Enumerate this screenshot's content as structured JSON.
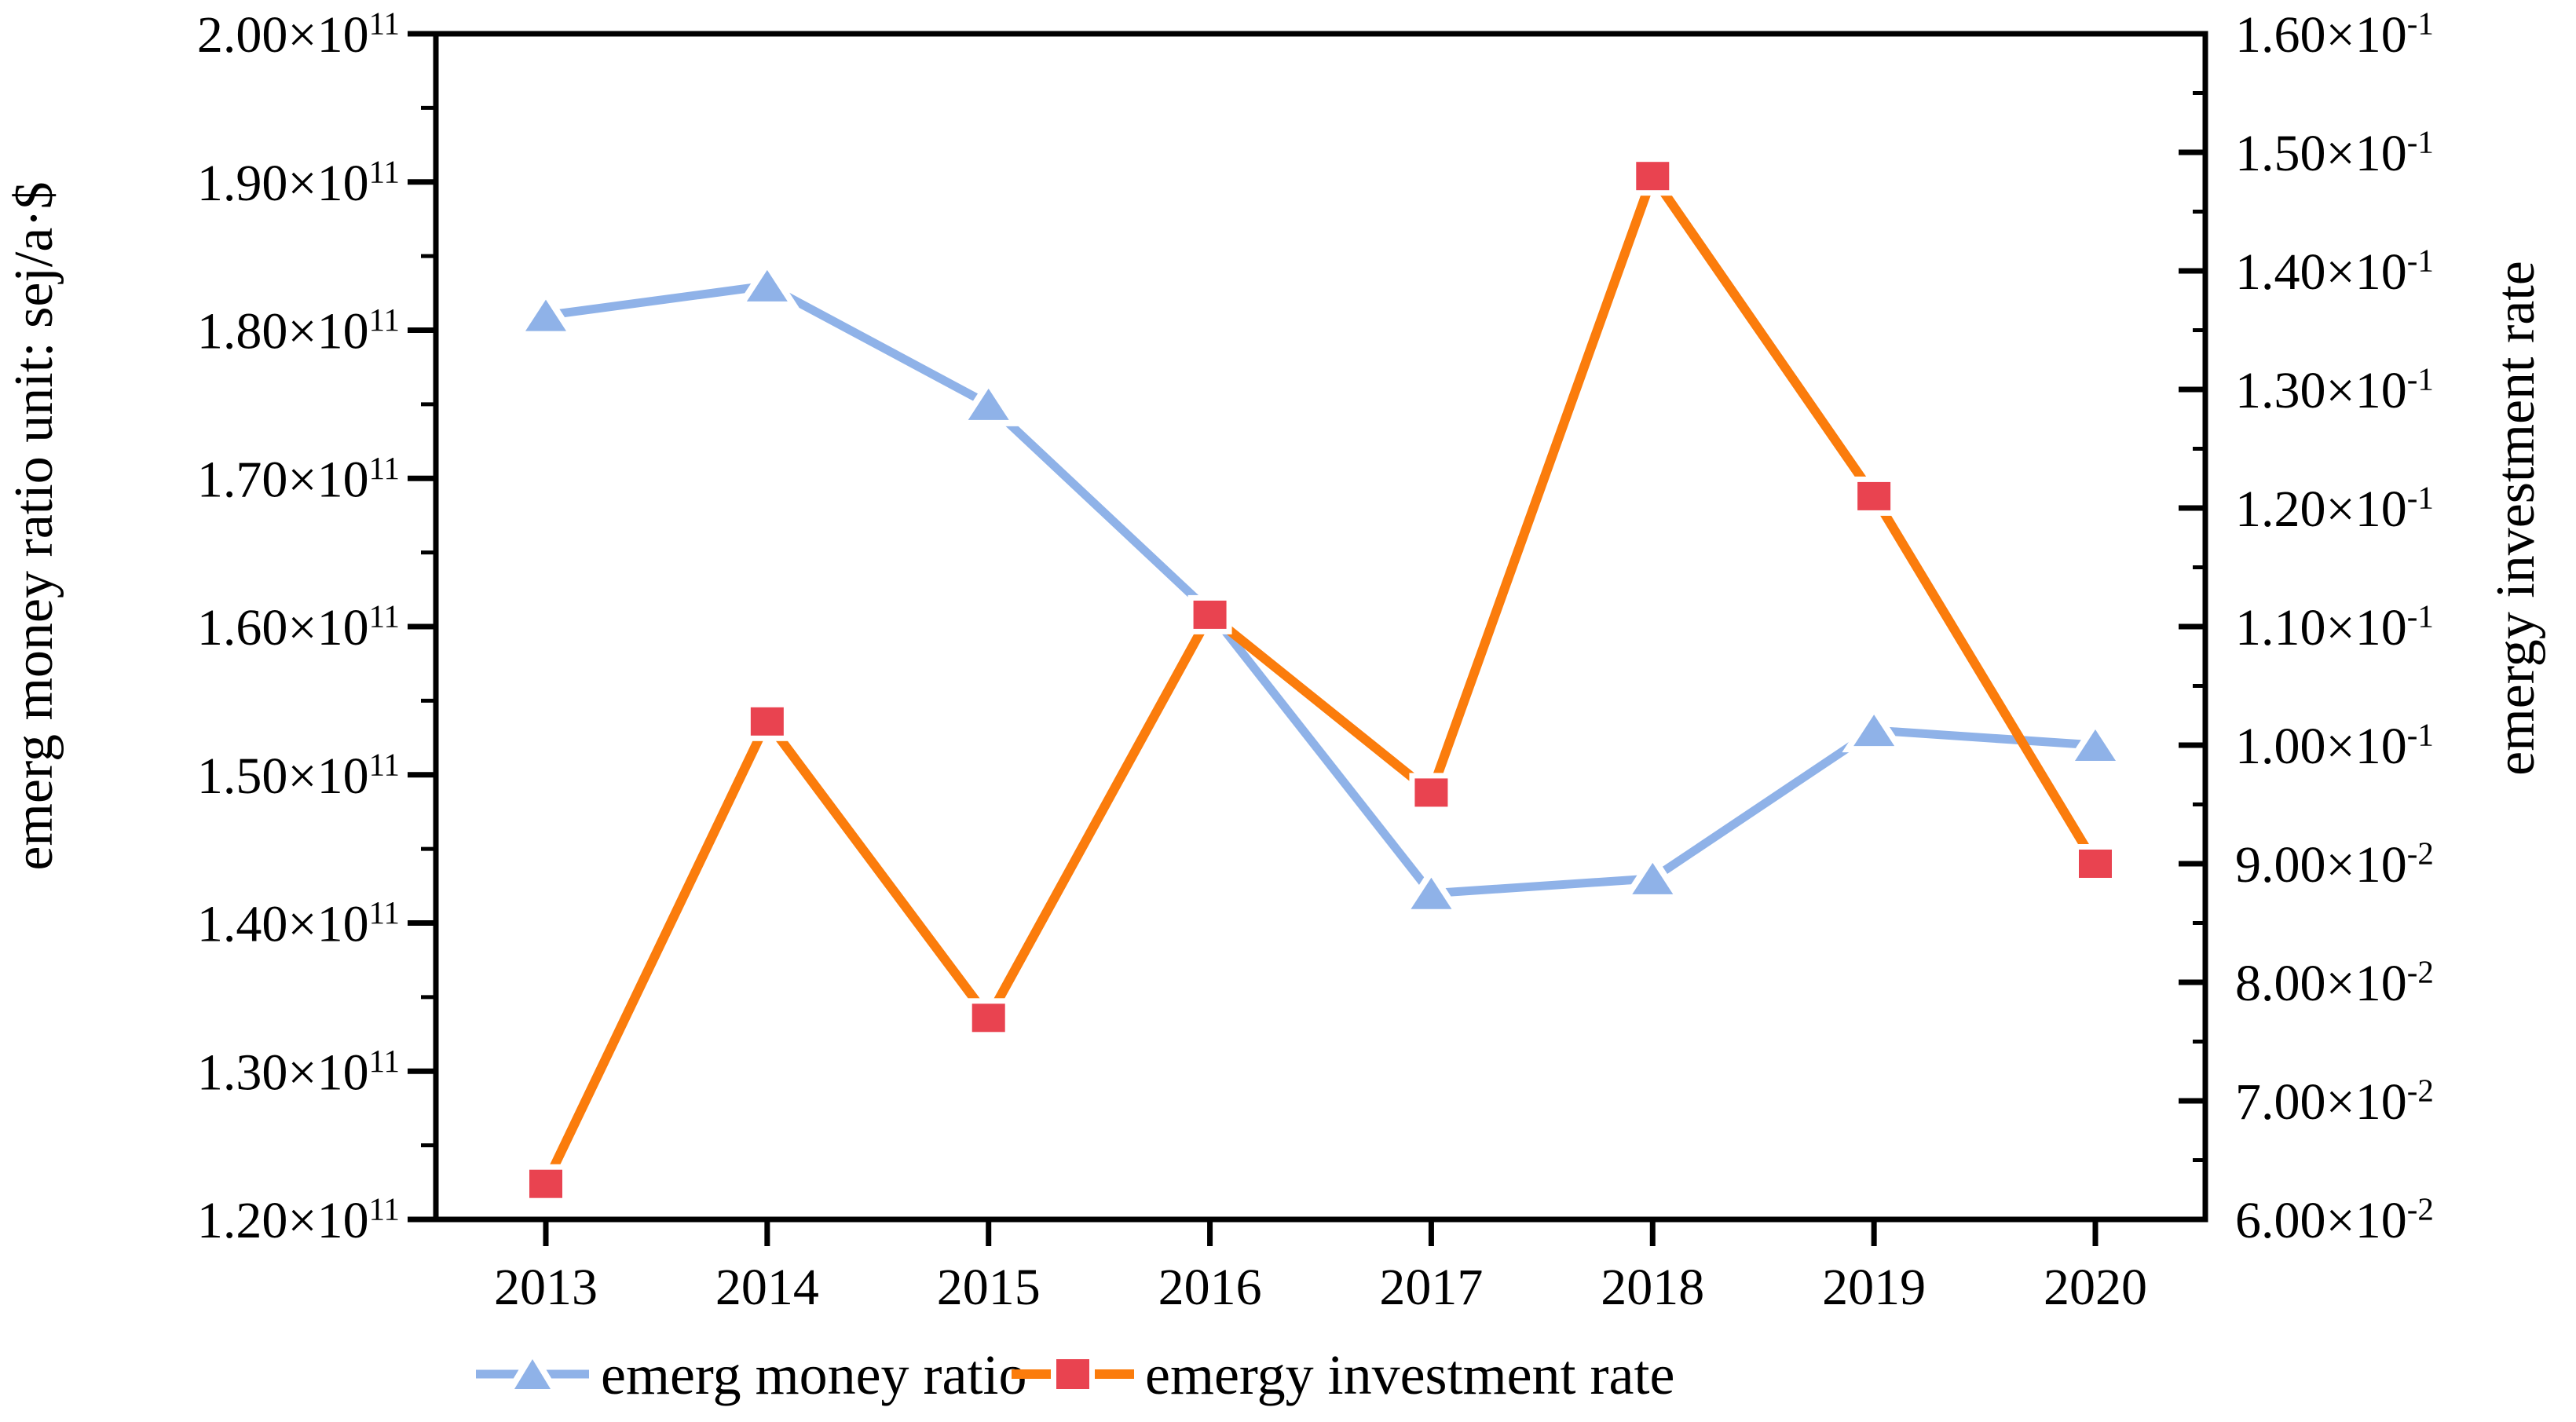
{
  "chart_data": {
    "type": "line",
    "title": "",
    "x_label": "",
    "x": [
      2013,
      2014,
      2015,
      2016,
      2017,
      2018,
      2019,
      2020
    ],
    "x_tick_labels": [
      "2013",
      "2014",
      "2015",
      "2016",
      "2017",
      "2018",
      "2019",
      "2020"
    ],
    "series": [
      {
        "name": "emerg money ratio",
        "axis": "left",
        "marker": "triangle",
        "line_color": "#8fb2e8",
        "marker_color": "#8fb2e8",
        "values": [
          181000000000.0,
          183000000000.0,
          175000000000.0,
          161000000000.0,
          142000000000.0,
          143000000000.0,
          153000000000.0,
          152000000000.0
        ]
      },
      {
        "name": "emergy investment rate",
        "axis": "right",
        "marker": "square",
        "line_color": "#fb7c0c",
        "marker_color": "#e94350",
        "values": [
          0.063,
          0.102,
          0.077,
          0.111,
          0.096,
          0.148,
          0.121,
          0.09
        ]
      }
    ],
    "left_axis": {
      "label": "emerg money ratio unit: sej/a·$",
      "min": 120000000000.0,
      "max": 200000000000.0,
      "tick_labels": [
        "2.00×10^11",
        "1.90×10^11",
        "1.80×10^11",
        "1.70×10^11",
        "1.60×10^11",
        "1.50×10^11",
        "1.40×10^11",
        "1.30×10^11",
        "1.20×10^11"
      ]
    },
    "right_axis": {
      "label": "emergy investment rate",
      "min": 0.06,
      "max": 0.16,
      "tick_labels": [
        "1.60×10^-1",
        "1.50×10^-1",
        "1.40×10^-1",
        "1.30×10^-1",
        "1.20×10^-1",
        "1.10×10^-1",
        "1.00×10^-1",
        "9.00×10^-2",
        "8.00×10^-2",
        "7.00×10^-2",
        "6.00×10^-2"
      ]
    },
    "legend": {
      "position": "bottom",
      "items": [
        "emerg money ratio",
        "emergy investment rate"
      ]
    },
    "grid": false,
    "frame_color": "#000000",
    "background_color": "#ffffff"
  }
}
